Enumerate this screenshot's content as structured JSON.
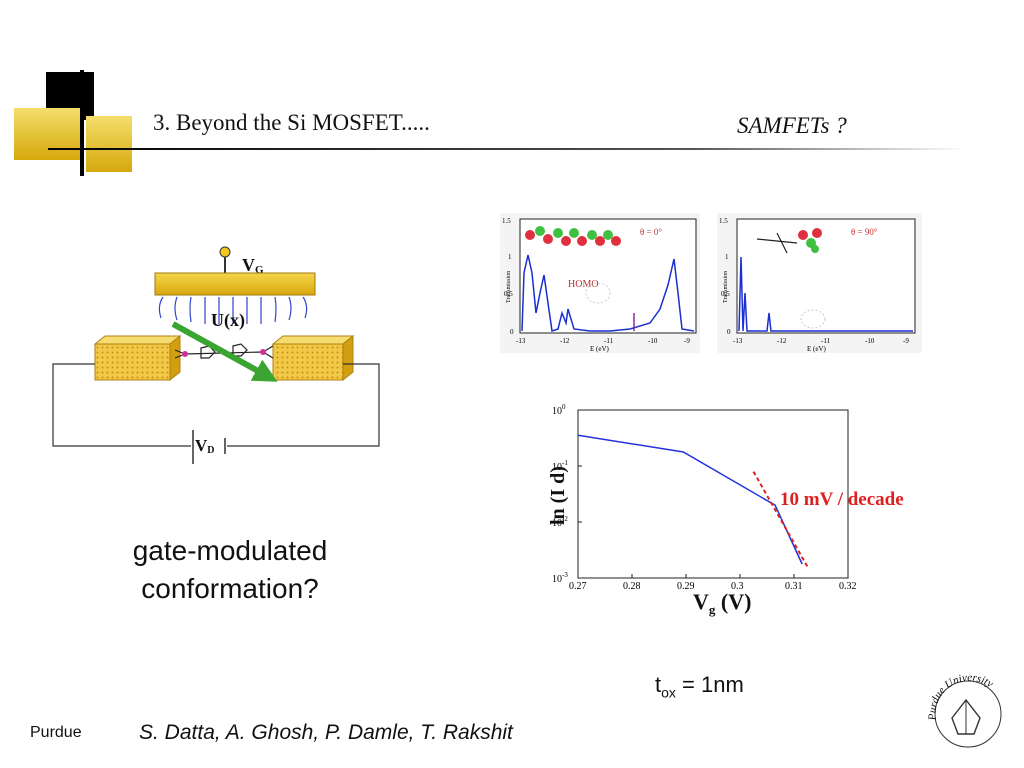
{
  "slide": {
    "title": "3.  Beyond the Si MOSFET.....",
    "subtitle": "SAMFETs ?",
    "caption_line1": "gate-modulated",
    "caption_line2": "conformation?",
    "tox_label_main": "t",
    "tox_label_sub": "ox",
    "tox_label_value": " = 1nm",
    "footer_left": "Purdue",
    "footer_authors": "S. Datta, A. Ghosh, P. Damle, T. Rakshit"
  },
  "device": {
    "gate_label": "V",
    "gate_sub": "G",
    "potential_label": "U(x)",
    "drain_label": "V",
    "drain_sub": "D"
  },
  "transmission_left": {
    "theta_label": "θ = 0°",
    "homo_label": "HOMO",
    "ylabel": "Transmission",
    "xlabel": "E (eV)",
    "yticks": [
      "1.5",
      "1",
      "0.5",
      "0"
    ],
    "xticks": [
      "-13",
      "-12",
      "-11",
      "-10",
      "-9"
    ]
  },
  "transmission_right": {
    "theta_label": "θ = 90°",
    "ylabel": "Transmission",
    "xlabel": "E (eV)",
    "yticks": [
      "1.5",
      "1",
      "0.5",
      "0"
    ],
    "xticks": [
      "-13",
      "-12",
      "-11",
      "-10",
      "-9"
    ]
  },
  "chart_data": {
    "type": "line",
    "title": "",
    "xlabel_main": "V",
    "xlabel_sub": "g",
    "xlabel_unit": " (V)",
    "ylabel": "ln (I d)",
    "annotation": "10 mV / decade",
    "xlim": [
      0.27,
      0.32
    ],
    "ylim_log10": [
      -3,
      0
    ],
    "xticks": [
      "0.27",
      "0.28",
      "0.29",
      "0.3",
      "0.31",
      "0.32"
    ],
    "yticks": [
      {
        "base": "10",
        "exp": "0"
      },
      {
        "base": "10",
        "exp": "-1"
      },
      {
        "base": "10",
        "exp": "-2"
      },
      {
        "base": "10",
        "exp": "-3"
      }
    ],
    "series": [
      {
        "color": "#2233dd",
        "style": "solid",
        "x": [
          0.27,
          0.2895,
          0.3065,
          0.3115
        ],
        "log10_y": [
          -0.45,
          -0.75,
          -1.7,
          -2.75
        ]
      },
      {
        "color": "#e02020",
        "style": "dashed",
        "x": [
          0.3025,
          0.3125
        ],
        "log10_y": [
          -1.1,
          -2.8
        ]
      }
    ]
  },
  "colors": {
    "accent_gold": "#e1b818",
    "gold_light": "#f3df6b",
    "block_black": "#000000",
    "line_blue": "#2233dd",
    "fit_red": "#e02020",
    "arrow_green": "#3aa530"
  }
}
